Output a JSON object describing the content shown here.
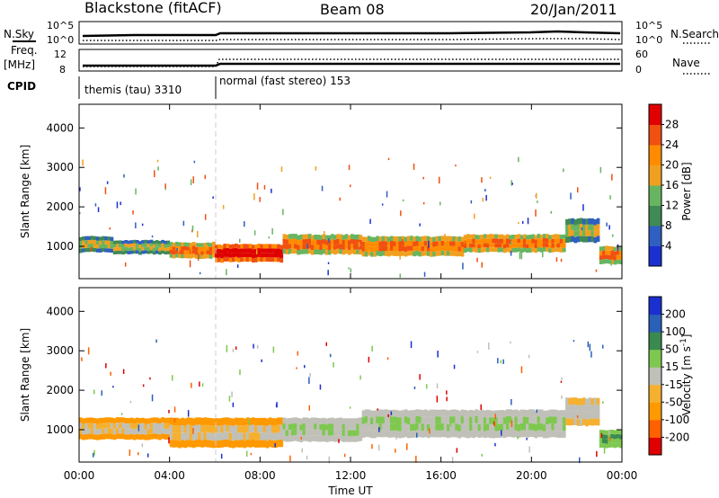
{
  "header": {
    "title": "Blackstone (fitACF)",
    "beam": "Beam 08",
    "date": "20/Jan/2011"
  },
  "strip1": {
    "left_label": "N.Sky",
    "right_label": "N.Search",
    "left_ticks": [
      "10^5",
      "10^0"
    ],
    "right_ticks": [
      "10^5",
      "10^0"
    ]
  },
  "strip2": {
    "left_label": "Freq.",
    "left_unit": "[MHz]",
    "right_label": "Nave",
    "left_ticks": [
      "12",
      "8"
    ],
    "right_ticks": [
      "60",
      "0"
    ]
  },
  "cpid": {
    "label": "CPID",
    "segments": [
      {
        "text": "themis (tau) 3310",
        "start_h": 0,
        "end_h": 6
      },
      {
        "text": "normal (fast stereo) 153",
        "start_h": 6,
        "end_h": 24
      }
    ]
  },
  "colors": {
    "power_scale": [
      "#1a2fd0",
      "#2f5fc0",
      "#3f8a55",
      "#67b560",
      "#f0a020",
      "#ff8c00",
      "#f05010",
      "#e00000"
    ],
    "velocity_scale": [
      "#e00000",
      "#ff6000",
      "#ff9900",
      "#f5b030",
      "#c0c0b8",
      "#7ec850",
      "#3a8a50",
      "#2a60b8",
      "#1a2fd0"
    ]
  },
  "chart_data": [
    {
      "type": "heatmap",
      "name": "power",
      "ylabel": "Slant Range [km]",
      "xlim": [
        0,
        24
      ],
      "ylim": [
        180,
        4600
      ],
      "yticks": [
        1000,
        2000,
        3000,
        4000
      ],
      "colorbar_label": "Power [dB]",
      "colorbar_ticks": [
        4,
        8,
        12,
        16,
        20,
        24,
        28
      ],
      "colorbar_range": [
        0,
        32
      ],
      "bands": [
        {
          "t0": 0,
          "t1": 1.5,
          "r0": 850,
          "r1": 1250,
          "level": "mid"
        },
        {
          "t0": 1.5,
          "t1": 4,
          "r0": 800,
          "r1": 1150,
          "level": "mid"
        },
        {
          "t0": 4,
          "t1": 6,
          "r0": 700,
          "r1": 1100,
          "level": "high"
        },
        {
          "t0": 6,
          "t1": 9,
          "r0": 600,
          "r1": 1050,
          "level": "peak"
        },
        {
          "t0": 9,
          "t1": 12.5,
          "r0": 800,
          "r1": 1300,
          "level": "high"
        },
        {
          "t0": 12.5,
          "t1": 17,
          "r0": 750,
          "r1": 1250,
          "level": "high"
        },
        {
          "t0": 17,
          "t1": 21.5,
          "r0": 850,
          "r1": 1300,
          "level": "high"
        },
        {
          "t0": 21.5,
          "t1": 23,
          "r0": 1100,
          "r1": 1700,
          "level": "mid"
        },
        {
          "t0": 23,
          "t1": 24,
          "r0": 550,
          "r1": 1000,
          "level": "high"
        }
      ]
    },
    {
      "type": "heatmap",
      "name": "velocity",
      "ylabel": "Slant Range [km]",
      "xlabel": "Time UT",
      "xlim": [
        0,
        24
      ],
      "ylim": [
        180,
        4600
      ],
      "yticks": [
        1000,
        2000,
        3000,
        4000
      ],
      "xticks": [
        "00:00",
        "04:00",
        "08:00",
        "12:00",
        "16:00",
        "20:00",
        "00:00"
      ],
      "xtick_hours": [
        0,
        4,
        8,
        12,
        16,
        20,
        24
      ],
      "colorbar_label": "Velocity [m s-1]",
      "colorbar_ticks": [
        -200,
        -100,
        -50,
        -15,
        15,
        50,
        100,
        200
      ],
      "bands": [
        {
          "t0": 0,
          "t1": 4,
          "r0": 750,
          "r1": 1300,
          "level": "-50"
        },
        {
          "t0": 4,
          "t1": 9,
          "r0": 550,
          "r1": 1300,
          "level": "-50"
        },
        {
          "t0": 9,
          "t1": 12.5,
          "r0": 700,
          "r1": 1300,
          "level": "0"
        },
        {
          "t0": 12.5,
          "t1": 21.5,
          "r0": 800,
          "r1": 1500,
          "level": "0"
        },
        {
          "t0": 21.5,
          "t1": 23,
          "r0": 1100,
          "r1": 1800,
          "level": "-15"
        },
        {
          "t0": 23,
          "t1": 24,
          "r0": 550,
          "r1": 1000,
          "level": "50"
        }
      ]
    }
  ]
}
